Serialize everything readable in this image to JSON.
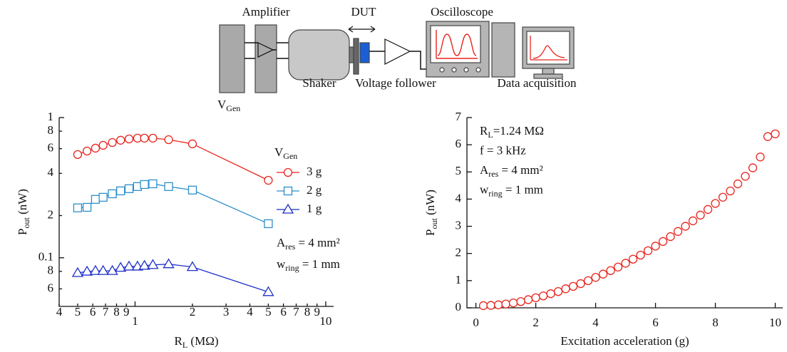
{
  "diagram": {
    "labels": {
      "amplifier": "Amplifier",
      "dut": "DUT",
      "oscilloscope": "Oscilloscope",
      "vgen": {
        "base": "V",
        "sub": "Gen"
      },
      "shaker": "Shaker",
      "follower": "Voltage follower",
      "daq": "Data acquisition"
    }
  },
  "chart_data": [
    {
      "type": "line",
      "log_x": true,
      "log_y": true,
      "xlabel": {
        "base": "R",
        "sub": "L",
        "tail": " (MΩ)"
      },
      "ylabel": {
        "base": "P",
        "sub": "out",
        "tail": " (nW)"
      },
      "xlim": [
        0.4,
        11
      ],
      "ylim": [
        0.045,
        1
      ],
      "xticks": [
        {
          "value": 0.4,
          "label": "4"
        },
        {
          "value": 0.5,
          "label": "5"
        },
        {
          "value": 0.6,
          "label": "6"
        },
        {
          "value": 0.7,
          "label": "7"
        },
        {
          "value": 0.8,
          "label": "8"
        },
        {
          "value": 0.9,
          "label": "9"
        },
        1,
        2,
        3,
        4,
        5,
        6,
        7,
        8,
        9,
        10
      ],
      "yticks": [
        {
          "value": 0.06,
          "label": "6"
        },
        {
          "value": 0.08,
          "label": "8"
        },
        0.1,
        {
          "value": 0.2,
          "label": "2"
        },
        {
          "value": 0.4,
          "label": "4"
        },
        {
          "value": 0.6,
          "label": "6"
        },
        {
          "value": 0.8,
          "label": "8"
        },
        1
      ],
      "legend": {
        "title": {
          "base": "V",
          "sub": "Gen"
        },
        "position": "right"
      },
      "annotations": [
        {
          "base": "A",
          "sub": "res",
          "tail": " = 4 mm²"
        },
        {
          "base": "w",
          "sub": "ring",
          "tail": " = 1 mm"
        }
      ],
      "x": [
        0.5,
        0.56,
        0.62,
        0.68,
        0.76,
        0.84,
        0.93,
        1.03,
        1.12,
        1.24,
        1.5,
        2,
        5
      ],
      "series": [
        {
          "name": "3 g",
          "color": "#e8241d",
          "marker": "circle",
          "values": [
            0.545,
            0.577,
            0.605,
            0.634,
            0.664,
            0.689,
            0.704,
            0.713,
            0.713,
            0.713,
            0.696,
            0.649,
            0.357
          ]
        },
        {
          "name": "2 g",
          "color": "#2b8fcb",
          "marker": "square",
          "values": [
            0.227,
            0.229,
            0.261,
            0.27,
            0.286,
            0.3,
            0.311,
            0.322,
            0.333,
            0.337,
            0.322,
            0.304,
            0.175
          ]
        },
        {
          "name": "1 g",
          "color": "#1e2fc8",
          "marker": "triangle",
          "values": [
            0.078,
            0.0798,
            0.0807,
            0.0807,
            0.0807,
            0.085,
            0.0867,
            0.0867,
            0.0878,
            0.089,
            0.0901,
            0.086,
            0.057
          ]
        }
      ]
    },
    {
      "type": "scatter",
      "xlabel": "Excitation acceleration (g)",
      "ylabel": {
        "base": "P",
        "sub": "out",
        "tail": " (nW)"
      },
      "xlim": [
        -0.3,
        10.25
      ],
      "ylim": [
        0,
        7
      ],
      "xticks": [
        0,
        2,
        4,
        6,
        8,
        10
      ],
      "yticks": [
        0,
        1,
        2,
        3,
        4,
        5,
        6,
        7
      ],
      "annotations": [
        {
          "base": "R",
          "sub": "L",
          "tail": "=1.24 MΩ"
        },
        "f = 3 kHz",
        {
          "base": "A",
          "sub": "res",
          "tail": " = 4 mm²"
        },
        {
          "base": "w",
          "sub": "ring",
          "tail": " = 1 mm"
        }
      ],
      "x": [
        0.25,
        0.5,
        0.75,
        1,
        1.25,
        1.5,
        1.75,
        2,
        2.25,
        2.5,
        2.75,
        3,
        3.25,
        3.5,
        3.75,
        4,
        4.25,
        4.5,
        4.75,
        5,
        5.25,
        5.5,
        5.75,
        6,
        6.25,
        6.5,
        6.75,
        7,
        7.25,
        7.5,
        7.75,
        8,
        8.25,
        8.5,
        8.75,
        9,
        9.25,
        9.5,
        9.75,
        10
      ],
      "series": [
        {
          "color": "#e8241d",
          "marker": "circle",
          "values": [
            0.08,
            0.09,
            0.11,
            0.14,
            0.18,
            0.23,
            0.3,
            0.37,
            0.44,
            0.52,
            0.6,
            0.7,
            0.79,
            0.89,
            1.0,
            1.12,
            1.24,
            1.37,
            1.5,
            1.64,
            1.79,
            1.94,
            2.1,
            2.27,
            2.44,
            2.62,
            2.81,
            3.0,
            3.2,
            3.41,
            3.62,
            3.84,
            4.07,
            4.3,
            4.56,
            4.84,
            5.15,
            5.55,
            6.3,
            6.4
          ]
        }
      ]
    }
  ]
}
